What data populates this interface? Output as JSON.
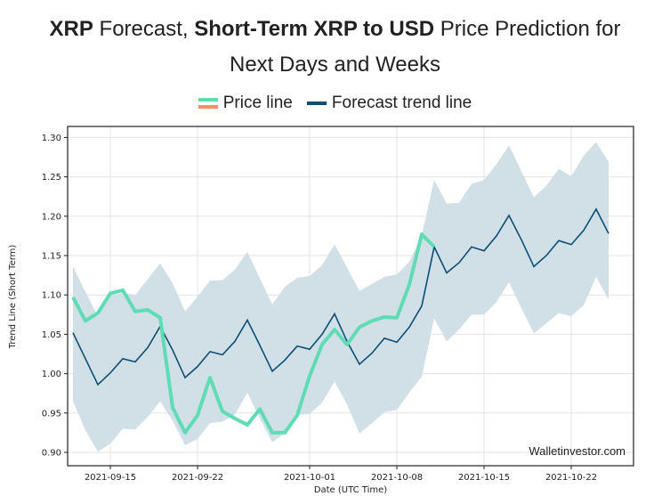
{
  "title": {
    "line1_parts": [
      {
        "text": "XRP",
        "bold": true
      },
      {
        "text": " Forecast, ",
        "bold": false
      },
      {
        "text": "Short-Term XRP to USD",
        "bold": true
      },
      {
        "text": " Price Prediction for",
        "bold": false
      }
    ],
    "line2": "Next Days and Weeks"
  },
  "legend": {
    "items": [
      {
        "label": "Price line",
        "colors": [
          "#5fdcb3",
          "#f59066"
        ]
      },
      {
        "label": "Forecast trend line",
        "colors": [
          "#0b4f74"
        ]
      }
    ]
  },
  "watermark": "Walletinvestor.com",
  "colors": {
    "price": "#5fdcb3",
    "forecast": "#0b4f74",
    "band": "#cfdde6",
    "band_edge": "#b9ccd9",
    "grid": "#e3e3e3",
    "axis": "#222222"
  },
  "chart_data": {
    "type": "line",
    "title": "XRP Forecast, Short-Term XRP to USD Price Prediction for Next Days and Weeks",
    "xlabel": "Date (UTC Time)",
    "ylabel": "Trend Line (Short Term)",
    "x_start_date": "2021-09-12",
    "x_tick_labels": [
      "2021-09-15",
      "2021-09-22",
      "2021-10-01",
      "2021-10-08",
      "2021-10-15",
      "2021-10-22"
    ],
    "x_tick_days": [
      3,
      10,
      19,
      26,
      33,
      40
    ],
    "xlim_days": [
      -0.4,
      45
    ],
    "y_ticks": [
      0.9,
      0.95,
      1.0,
      1.05,
      1.1,
      1.15,
      1.2,
      1.25,
      1.3
    ],
    "y_tick_labels": [
      "0.90",
      "0.95",
      "1.00",
      "1.05",
      "1.10",
      "1.15",
      "1.20",
      "1.25",
      "1.30"
    ],
    "ylim": [
      0.883,
      1.314
    ],
    "grid": true,
    "legend_position": "top-center",
    "series": [
      {
        "name": "Price line",
        "values": [
          1.097,
          1.067,
          1.077,
          1.102,
          1.106,
          1.079,
          1.081,
          1.071,
          0.957,
          0.925,
          0.947,
          0.995,
          0.952,
          0.943,
          0.935,
          0.955,
          0.925,
          0.925,
          0.947,
          0.997,
          1.037,
          1.056,
          1.037,
          1.059,
          1.067,
          1.072,
          1.071,
          1.113,
          1.177,
          1.161
        ]
      },
      {
        "name": "Forecast trend line",
        "values": [
          1.052,
          1.019,
          0.986,
          1.001,
          1.019,
          1.015,
          1.033,
          1.06,
          1.03,
          0.995,
          1.009,
          1.028,
          1.024,
          1.041,
          1.068,
          1.036,
          1.003,
          1.017,
          1.035,
          1.031,
          1.05,
          1.076,
          1.041,
          1.012,
          1.026,
          1.045,
          1.04,
          1.059,
          1.086,
          1.161,
          1.128,
          1.141,
          1.161,
          1.156,
          1.175,
          1.201,
          1.17,
          1.136,
          1.15,
          1.169,
          1.164,
          1.182,
          1.209,
          1.178
        ]
      },
      {
        "name": "Forecast upper bound",
        "values": [
          1.136,
          1.104,
          1.073,
          1.099,
          1.103,
          1.1,
          1.12,
          1.14,
          1.115,
          1.079,
          1.098,
          1.118,
          1.119,
          1.132,
          1.155,
          1.121,
          1.088,
          1.11,
          1.122,
          1.124,
          1.138,
          1.164,
          1.135,
          1.105,
          1.114,
          1.123,
          1.126,
          1.142,
          1.176,
          1.246,
          1.216,
          1.217,
          1.241,
          1.246,
          1.266,
          1.29,
          1.257,
          1.224,
          1.239,
          1.26,
          1.251,
          1.277,
          1.294,
          1.269
        ]
      },
      {
        "name": "Forecast lower bound",
        "values": [
          0.965,
          0.928,
          0.901,
          0.911,
          0.93,
          0.929,
          0.945,
          0.965,
          0.94,
          0.909,
          0.917,
          0.937,
          0.939,
          0.948,
          0.976,
          0.943,
          0.913,
          0.924,
          0.947,
          0.949,
          0.963,
          0.99,
          0.961,
          0.924,
          0.937,
          0.951,
          0.954,
          0.976,
          0.996,
          1.07,
          1.041,
          1.056,
          1.075,
          1.075,
          1.091,
          1.116,
          1.083,
          1.051,
          1.064,
          1.077,
          1.073,
          1.087,
          1.123,
          1.094
        ]
      }
    ]
  }
}
